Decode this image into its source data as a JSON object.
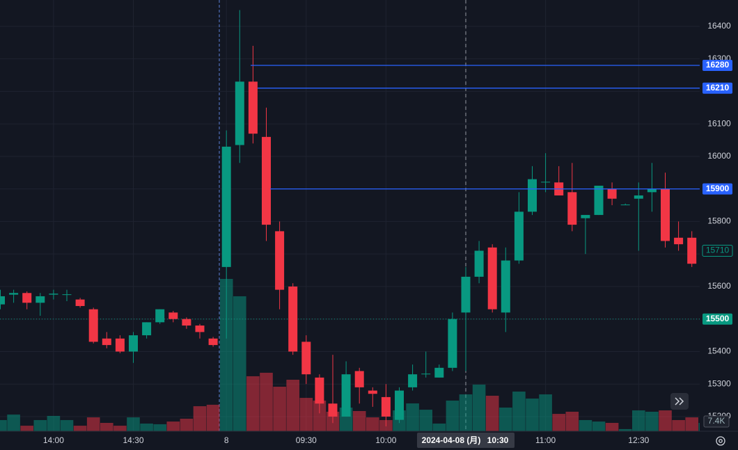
{
  "chart_data": {
    "type": "candlestick",
    "categories": [
      null,
      null,
      null,
      null,
      "14:00",
      null,
      null,
      null,
      null,
      null,
      "14:30",
      null,
      null,
      null,
      null,
      null,
      null,
      "8",
      null,
      null,
      null,
      null,
      null,
      "09:30",
      null,
      null,
      null,
      null,
      null,
      "10:00",
      null,
      null,
      null,
      null,
      null,
      "10:30",
      null,
      null,
      null,
      null,
      null,
      "11:00",
      null,
      null,
      null,
      null,
      null,
      null,
      "12:30",
      null,
      null,
      null,
      null,
      null
    ],
    "open": [
      15545,
      15575,
      15580,
      15550,
      15575,
      15575,
      15560,
      15530,
      15440,
      15440,
      15400,
      15450,
      15490,
      15520,
      15500,
      15480,
      15440,
      15660,
      16035,
      16230,
      16060,
      15770,
      15600,
      15430,
      15320,
      15240,
      15200,
      15340,
      15280,
      15260,
      15190,
      15290,
      15330,
      15320,
      15350,
      15520,
      15630,
      15720,
      15520,
      15680,
      15830,
      15920,
      15920,
      15890,
      15810,
      15820,
      15900,
      15850,
      15870,
      15890,
      15900,
      15750,
      15750,
      15690
    ],
    "high": [
      15590,
      15590,
      15585,
      15580,
      15590,
      15590,
      15565,
      15535,
      15460,
      15450,
      15460,
      15490,
      15530,
      15525,
      15505,
      15485,
      15445,
      16080,
      16450,
      16340,
      16150,
      15800,
      15610,
      15450,
      15330,
      15390,
      15370,
      15350,
      15290,
      15300,
      15290,
      15360,
      15400,
      15360,
      15520,
      15660,
      15740,
      15730,
      15720,
      15890,
      15970,
      16010,
      15970,
      15980,
      15820,
      15910,
      15920,
      15855,
      15920,
      15980,
      15950,
      15800,
      15770,
      15720
    ],
    "low": [
      15530,
      15550,
      15530,
      15510,
      15560,
      15555,
      15535,
      15425,
      15410,
      15395,
      15365,
      15440,
      15485,
      15490,
      15470,
      15440,
      15415,
      15440,
      15980,
      16040,
      15740,
      15530,
      15390,
      15300,
      15210,
      15180,
      15200,
      15240,
      15230,
      15170,
      15180,
      15280,
      15320,
      15320,
      15340,
      15340,
      15610,
      15520,
      15460,
      15670,
      15820,
      15890,
      15880,
      15770,
      15700,
      15820,
      15850,
      15850,
      15710,
      15830,
      15720,
      15710,
      15660,
      15680
    ],
    "close": [
      15570,
      15580,
      15550,
      15570,
      15578,
      15576,
      15540,
      15430,
      15420,
      15400,
      15450,
      15490,
      15530,
      15500,
      15480,
      15460,
      15420,
      16030,
      16230,
      16070,
      15790,
      15590,
      15400,
      15330,
      15240,
      15200,
      15330,
      15290,
      15270,
      15200,
      15280,
      15330,
      15332,
      15350,
      15500,
      15630,
      15710,
      15530,
      15680,
      15830,
      15930,
      15922,
      15880,
      15790,
      15820,
      15910,
      15870,
      15852,
      15880,
      15900,
      15740,
      15730,
      15670,
      15710
    ],
    "volume": [
      9.9,
      14.8,
      4.9,
      9.9,
      13.6,
      9.9,
      4.9,
      12.3,
      7.4,
      4.9,
      12.3,
      6.8,
      6.2,
      8.6,
      11.1,
      22.2,
      23.5,
      135.2,
      119.8,
      48.8,
      51.9,
      39.5,
      45.7,
      29.6,
      27.2,
      17.3,
      21.0,
      17.9,
      12.3,
      9.9,
      18.5,
      24.7,
      19.1,
      6.8,
      27.2,
      32.7,
      41.4,
      31.5,
      21.0,
      35.2,
      29.0,
      32.7,
      15.4,
      17.3,
      9.9,
      8.6,
      7.4,
      1.9,
      18.5,
      17.3,
      18.5,
      9.9,
      12.3,
      7.4
    ],
    "last_volume_label": "7.4K",
    "crosshair_date": "2024-04-08 (月)",
    "price_lines": [
      16280,
      16210,
      15900
    ],
    "reference_line": 15500,
    "up_color": "#089981",
    "down_color": "#f23645",
    "line_color": "#2962ff",
    "ylim": [
      15155,
      16481
    ],
    "yticks": [
      15200,
      15300,
      15400,
      15500,
      15600,
      15700,
      15800,
      15900,
      16000,
      16100,
      16200,
      16300,
      16400
    ],
    "grid": true
  }
}
